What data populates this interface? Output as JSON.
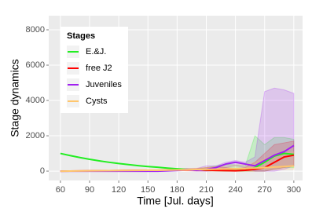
{
  "chart_data": {
    "type": "line",
    "x_label": "Time [Jul. days]",
    "y_label": "Stage dynamics",
    "legend_title": "Stages",
    "legend": "top-left",
    "grid": true,
    "x": [
      60,
      70,
      80,
      90,
      100,
      110,
      120,
      130,
      140,
      150,
      160,
      170,
      180,
      190,
      200,
      210,
      220,
      230,
      240,
      250,
      260,
      270,
      280,
      290,
      300
    ],
    "xlim": [
      48,
      309
    ],
    "xticks": [
      60,
      90,
      120,
      150,
      180,
      210,
      240,
      270,
      300
    ],
    "ylim": [
      -530,
      8800
    ],
    "yticks": [
      0,
      2000,
      4000,
      6000,
      8000
    ],
    "series": [
      {
        "name": "E.&J.",
        "color": "#22ee22",
        "values": [
          1000,
          880,
          770,
          670,
          580,
          500,
          430,
          370,
          310,
          260,
          220,
          170,
          130,
          100,
          80,
          60,
          50,
          40,
          30,
          50,
          200,
          500,
          850,
          1000,
          950
        ],
        "upper": [
          1000,
          880,
          770,
          670,
          580,
          500,
          430,
          370,
          310,
          260,
          220,
          180,
          150,
          130,
          120,
          200,
          300,
          400,
          350,
          300,
          2000,
          1500,
          1900,
          1900,
          1800
        ],
        "lower": [
          1000,
          880,
          770,
          670,
          580,
          500,
          430,
          370,
          310,
          260,
          220,
          160,
          110,
          70,
          40,
          20,
          10,
          0,
          0,
          0,
          0,
          0,
          100,
          200,
          200
        ]
      },
      {
        "name": "free J2",
        "color": "#ff0000",
        "values": [
          0,
          5,
          10,
          15,
          20,
          25,
          30,
          35,
          40,
          45,
          50,
          55,
          60,
          70,
          80,
          60,
          40,
          30,
          20,
          50,
          100,
          200,
          500,
          800,
          900
        ],
        "upper": [
          0,
          5,
          10,
          15,
          20,
          25,
          30,
          35,
          40,
          45,
          50,
          60,
          80,
          120,
          150,
          200,
          250,
          200,
          150,
          200,
          500,
          1000,
          1500,
          1600,
          1700
        ],
        "lower": [
          0,
          5,
          10,
          15,
          20,
          25,
          30,
          35,
          40,
          45,
          50,
          50,
          40,
          20,
          10,
          0,
          0,
          0,
          0,
          0,
          0,
          0,
          100,
          200,
          300
        ]
      },
      {
        "name": "Juveniles",
        "color": "#a020f0",
        "values": [
          0,
          0,
          0,
          0,
          0,
          0,
          0,
          0,
          0,
          0,
          0,
          20,
          50,
          100,
          50,
          100,
          200,
          400,
          500,
          400,
          300,
          600,
          900,
          1100,
          1450
        ],
        "upper": [
          0,
          0,
          0,
          0,
          0,
          0,
          0,
          0,
          0,
          0,
          10,
          60,
          120,
          150,
          150,
          300,
          300,
          500,
          600,
          500,
          800,
          4500,
          4700,
          4600,
          4400
        ],
        "lower": [
          0,
          0,
          0,
          0,
          0,
          0,
          0,
          0,
          0,
          0,
          0,
          0,
          0,
          50,
          0,
          0,
          50,
          200,
          300,
          200,
          0,
          0,
          0,
          100,
          300
        ]
      },
      {
        "name": "Cysts",
        "color": "#ffc66d",
        "values": [
          0,
          5,
          10,
          15,
          20,
          25,
          30,
          35,
          40,
          45,
          50,
          60,
          70,
          80,
          90,
          100,
          110,
          120,
          130,
          150,
          170,
          200,
          230,
          260,
          300
        ],
        "upper": [
          0,
          10,
          20,
          30,
          40,
          50,
          60,
          70,
          80,
          90,
          100,
          110,
          130,
          150,
          170,
          200,
          250,
          300,
          350,
          400,
          500,
          700,
          900,
          1000,
          1100
        ],
        "lower": [
          0,
          0,
          0,
          0,
          0,
          0,
          0,
          0,
          10,
          20,
          30,
          30,
          40,
          40,
          50,
          50,
          60,
          60,
          70,
          70,
          80,
          80,
          90,
          90,
          100
        ]
      }
    ]
  }
}
